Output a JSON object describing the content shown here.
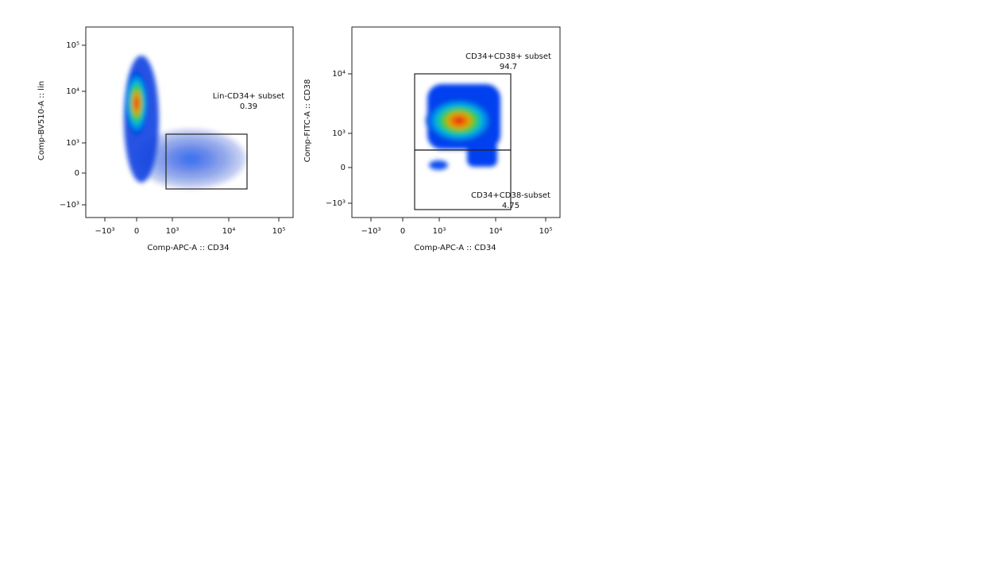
{
  "panels": [
    {
      "y_label": "Comp-BV510-A :: lin",
      "x_label": "Comp-APC-A :: CD34",
      "y_ticks": [
        "10⁵",
        "10⁴",
        "10³",
        "0",
        "−10³"
      ],
      "x_ticks": [
        "−10³",
        "0",
        "10³",
        "10⁴",
        "10⁵"
      ],
      "gates": [
        {
          "name": "Lin-CD34+ subset",
          "value": 0.39
        }
      ]
    },
    {
      "y_label": "Comp-FITC-A :: CD38",
      "x_label": "Comp-APC-A :: CD34",
      "y_ticks": [
        "10⁴",
        "10³",
        "0",
        "−10³"
      ],
      "x_ticks": [
        "−10³",
        "0",
        "10³",
        "10⁴",
        "10⁵"
      ],
      "gates": [
        {
          "name": "CD34+CD38+ subset",
          "value": 94.7
        },
        {
          "name": "CD34+CD38-subset",
          "value": 4.75
        }
      ]
    }
  ]
}
